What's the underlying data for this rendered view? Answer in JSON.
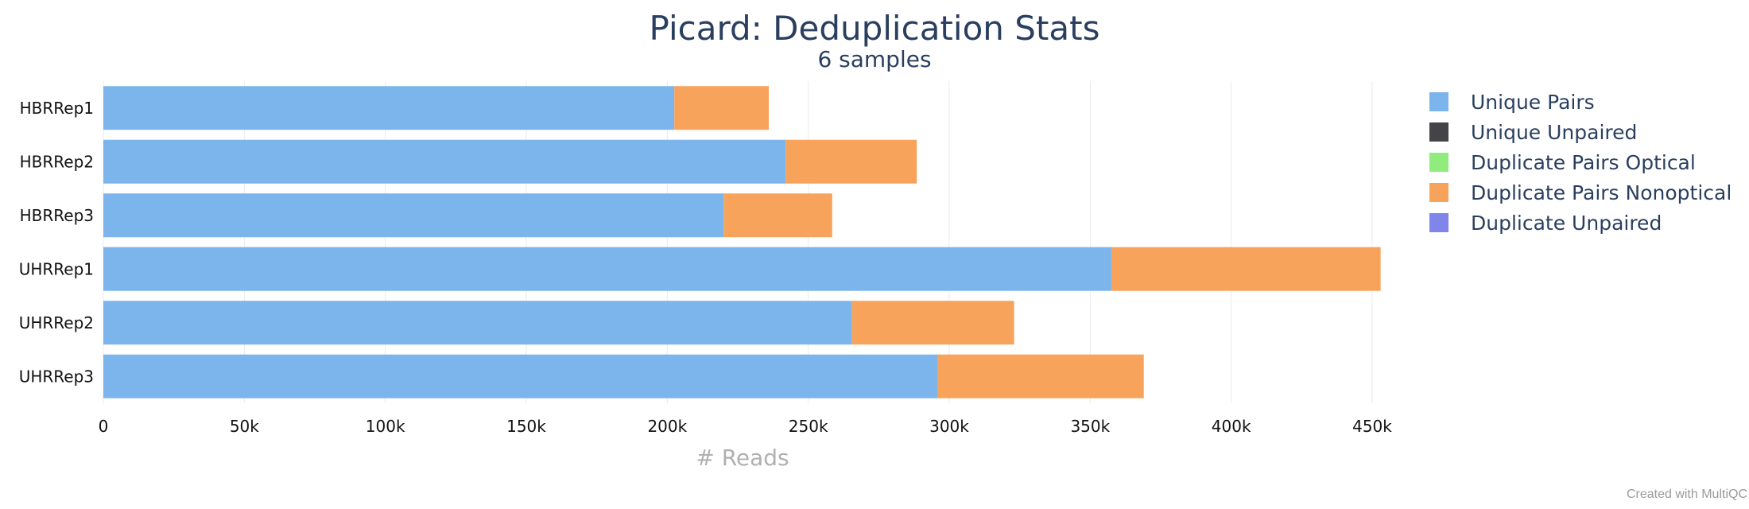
{
  "chart_data": {
    "type": "bar",
    "orientation": "horizontal",
    "stacked": true,
    "title": "Picard: Deduplication Stats",
    "subtitle": "6 samples",
    "xlabel": "# Reads",
    "ylabel": "",
    "xlim": [
      0,
      460000
    ],
    "xticks": [
      {
        "value": 0,
        "label": "0"
      },
      {
        "value": 50000,
        "label": "50k"
      },
      {
        "value": 100000,
        "label": "100k"
      },
      {
        "value": 150000,
        "label": "150k"
      },
      {
        "value": 200000,
        "label": "200k"
      },
      {
        "value": 250000,
        "label": "250k"
      },
      {
        "value": 300000,
        "label": "300k"
      },
      {
        "value": 350000,
        "label": "350k"
      },
      {
        "value": 400000,
        "label": "400k"
      },
      {
        "value": 450000,
        "label": "450k"
      }
    ],
    "grid": true,
    "legend_position": "right",
    "categories": [
      "HBRRep1",
      "HBRRep2",
      "HBRRep3",
      "UHRRep1",
      "UHRRep2",
      "UHRRep3"
    ],
    "series": [
      {
        "name": "Unique Pairs",
        "color": "#7cb5ec",
        "values": [
          202500,
          242000,
          220000,
          357500,
          265500,
          296000
        ]
      },
      {
        "name": "Unique Unpaired",
        "color": "#434348",
        "values": [
          0,
          0,
          0,
          0,
          0,
          0
        ]
      },
      {
        "name": "Duplicate Pairs Optical",
        "color": "#90ed7d",
        "values": [
          0,
          0,
          0,
          0,
          0,
          0
        ]
      },
      {
        "name": "Duplicate Pairs Nonoptical",
        "color": "#f7a35c",
        "values": [
          33500,
          46500,
          38500,
          95500,
          57500,
          73000
        ]
      },
      {
        "name": "Duplicate Unpaired",
        "color": "#8085e9",
        "values": [
          0,
          0,
          0,
          0,
          0,
          0
        ]
      }
    ]
  },
  "footer": {
    "credit": "Created with MultiQC"
  }
}
